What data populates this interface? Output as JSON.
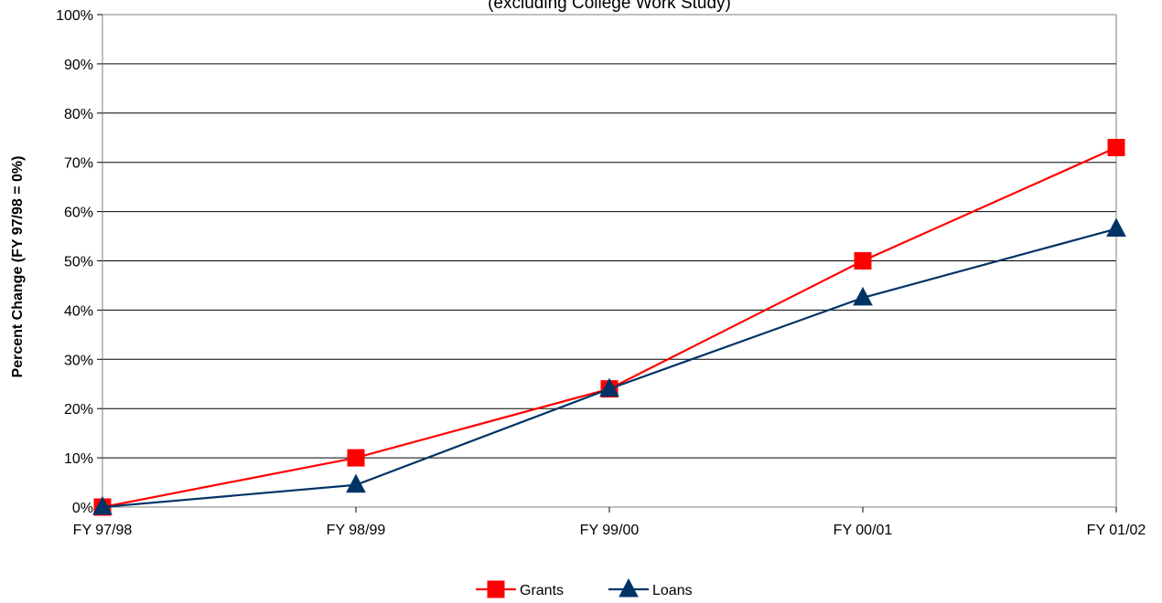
{
  "chart_data": {
    "type": "line",
    "title": "",
    "subtitle": "(excluding College Work Study)",
    "xlabel": "",
    "ylabel": "Percent Change (FY 97/98 = 0%)",
    "categories": [
      "FY 97/98",
      "FY 98/99",
      "FY 99/00",
      "FY 00/01",
      "FY 01/02"
    ],
    "y_ticks": [
      "0%",
      "10%",
      "20%",
      "30%",
      "40%",
      "50%",
      "60%",
      "70%",
      "80%",
      "90%",
      "100%"
    ],
    "ylim": [
      0,
      100
    ],
    "grid": true,
    "legend_position": "bottom-center",
    "series": [
      {
        "name": "Grants",
        "values": [
          0,
          10,
          24,
          50,
          73
        ],
        "color": "#ff0000",
        "marker": "square"
      },
      {
        "name": "Loans",
        "values": [
          0,
          4.5,
          24,
          42.5,
          56.5
        ],
        "color": "#003366",
        "marker": "triangle"
      }
    ]
  }
}
